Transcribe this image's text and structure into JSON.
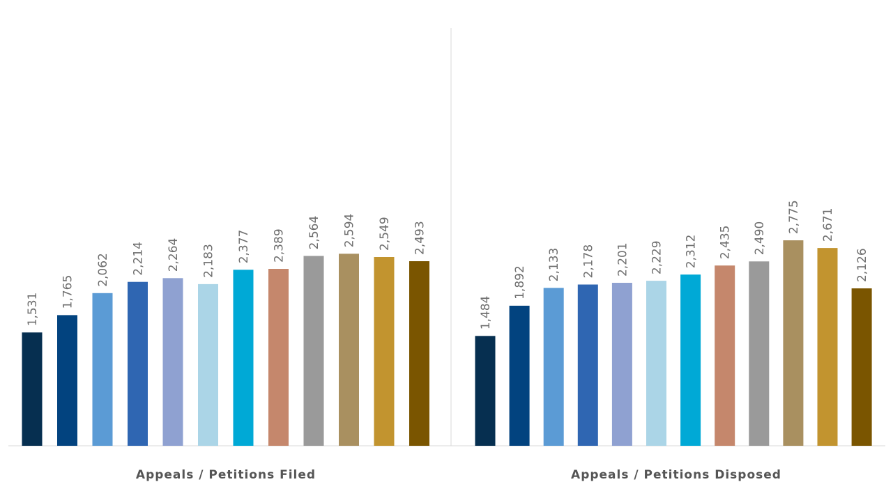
{
  "chart_data": {
    "type": "bar",
    "grid": false,
    "legend": "none",
    "bar_colors": [
      "#062f50",
      "#02437f",
      "#5b9bd5",
      "#2f66b2",
      "#8fa1d1",
      "#abd5e7",
      "#00a9d6",
      "#c5876c",
      "#9a9a9a",
      "#a99060",
      "#c2942f",
      "#7a5500"
    ],
    "groups": [
      {
        "label": "Appeals / Petitions Filed",
        "values": [
          1531,
          1765,
          2062,
          2214,
          2264,
          2183,
          2377,
          2389,
          2564,
          2594,
          2549,
          2493
        ],
        "value_labels": [
          "1,531",
          "1,765",
          "2,062",
          "2,214",
          "2,264",
          "2,183",
          "2,377",
          "2,389",
          "2,564",
          "2,594",
          "2,549",
          "2,493"
        ]
      },
      {
        "label": "Appeals / Petitions Disposed",
        "values": [
          1484,
          1892,
          2133,
          2178,
          2201,
          2229,
          2312,
          2435,
          2490,
          2775,
          2671,
          2126
        ],
        "value_labels": [
          "1,484",
          "1,892",
          "2,133",
          "2,178",
          "2,201",
          "2,229",
          "2,312",
          "2,435",
          "2,490",
          "2,775",
          "2,671",
          "2,126"
        ]
      }
    ]
  }
}
